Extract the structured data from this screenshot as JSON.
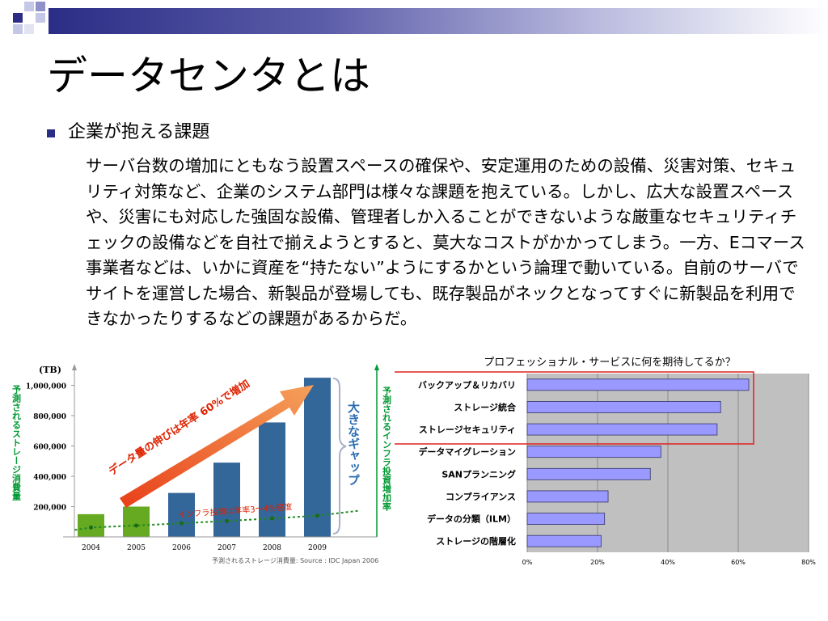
{
  "slide": {
    "title": "データセンタとは",
    "bullet": "企業が抱える課題",
    "paragraph": "サーバ台数の増加にともなう設置スペースの確保や、安定運用のための設備、災害対策、セキュリティ対策など、企業のシステム部門は様々な課題を抱えている。しかし、広大な設置スペースや、災害にも対応した強固な設備、管理者しか入ることができないような厳重なセキュリティチェックの設備などを自社で揃えようとすると、莫大なコストがかかってしまう。一方、Eコマース事業者などは、いかに資産を“持たない”ようにするかという論理で動いている。自前のサーバでサイトを運営した場合、新製品が登場しても、既存製品がネックとなってすぐに新製品を利用できなかったりするなどの課題があるからだ。"
  },
  "colors": {
    "accent_blue": "#2b2d86",
    "bar_blue": "#336699",
    "bar_green": "#66aa22",
    "bar_purple": "#9999ff",
    "highlight_red": "#e02020",
    "label_red": "#cc3300",
    "label_green": "#009933"
  },
  "chart_data": [
    {
      "type": "bar",
      "title": "",
      "unit": "(TB)",
      "ylabel_left": "予測されるストレージ消費量",
      "ylabel_right": "予測されるインフラ投資増加率",
      "categories": [
        "2004",
        "2005",
        "2006",
        "2007",
        "2008",
        "2009"
      ],
      "values": [
        150000,
        200000,
        290000,
        490000,
        755000,
        1050000
      ],
      "bar_colors": [
        "#66aa22",
        "#66aa22",
        "#336699",
        "#336699",
        "#336699",
        "#336699"
      ],
      "yticks": [
        "200,000",
        "400,000",
        "600,000",
        "800,000",
        "1,000,000"
      ],
      "ylim": [
        0,
        1120000
      ],
      "arrow_label": "データ量の伸びは年率 60%で増加",
      "trend_label": "インフラ投資は年率3～4%程度",
      "trend_values": [
        62000,
        75000,
        90000,
        105000,
        122000,
        140000
      ],
      "gap_label": "大きなギャップ",
      "source": "予測されるストレージ消費量: Source : IDC Japan 2006"
    },
    {
      "type": "bar",
      "orientation": "horizontal",
      "title": "プロフェッショナル・サービスに何を期待してるか？",
      "categories": [
        "バックアップ＆リカバリ",
        "ストレージ統合",
        "ストレージセキュリティ",
        "データマイグレーション",
        "SANプランニング",
        "コンプライアンス",
        "データの分類（ILM）",
        "ストレージの階層化"
      ],
      "values": [
        63,
        55,
        54,
        38,
        35,
        23,
        22,
        21
      ],
      "highlighted": [
        0,
        1,
        2
      ],
      "xticks": [
        "0%",
        "20%",
        "40%",
        "60%",
        "80%"
      ],
      "xlim": [
        0,
        80
      ],
      "grid": true
    }
  ]
}
